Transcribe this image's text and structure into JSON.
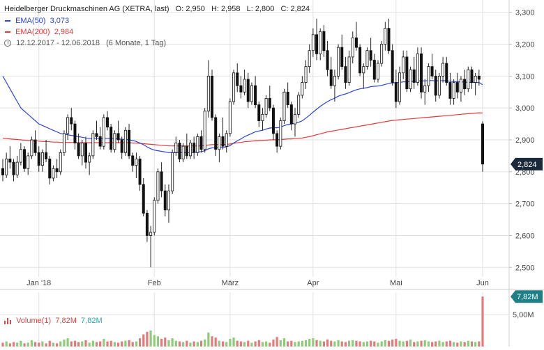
{
  "header": {
    "title": "Heidelberger Druckmaschinen AG (XETRA, last)",
    "open_label": "O:",
    "open": "2,950",
    "high_label": "H:",
    "high": "2,958",
    "low_label": "L:",
    "low": "2,800",
    "close_label": "C:",
    "close": "2,824",
    "ema50_label": "EMA(50)",
    "ema50_value": "3,073",
    "ema200_label": "EMA(200)",
    "ema200_value": "2,984",
    "date_range": "12.12.2017 - 12.06.2018",
    "period": "(6 Monate, 1 Tag)"
  },
  "volume_legend": {
    "label": "Volume(1)",
    "value1": "7,82M",
    "value2": "7,82M"
  },
  "price_badge": "2,824",
  "volume_badge": "7,82M",
  "colors": {
    "up": "#ffffff",
    "down": "#111111",
    "wick": "#222222",
    "ema50": "#2b45d8",
    "ema200": "#e23b3b",
    "vol_up": "#8ecb7a",
    "vol_down": "#e27b7b",
    "grid": "#e2e2e2",
    "badge_bg": "#1b2a3a",
    "volume_badge_bg": "#1e7f86"
  },
  "chart_data": [
    {
      "type": "candlestick",
      "title": "Heidelberger Druckmaschinen AG (XETRA, last)",
      "ylim": [
        2.47,
        3.33
      ],
      "y_ticks": [
        "3,300",
        "3,200",
        "3,100",
        "3,000",
        "2,900",
        "2,800",
        "2,700",
        "2,600",
        "2,500"
      ],
      "x_ticks": [
        "Jan '18",
        "Feb",
        "März",
        "Apr",
        "Mai",
        "Jun"
      ],
      "x_tick_index": [
        10,
        42,
        63,
        86,
        109,
        133
      ],
      "ohlc": [
        [
          2.81,
          2.84,
          2.77,
          2.79
        ],
        [
          2.79,
          2.86,
          2.78,
          2.84
        ],
        [
          2.84,
          2.88,
          2.81,
          2.83
        ],
        [
          2.83,
          2.84,
          2.77,
          2.79
        ],
        [
          2.79,
          2.85,
          2.78,
          2.83
        ],
        [
          2.83,
          2.89,
          2.82,
          2.87
        ],
        [
          2.87,
          2.88,
          2.8,
          2.81
        ],
        [
          2.81,
          2.86,
          2.79,
          2.85
        ],
        [
          2.85,
          2.91,
          2.84,
          2.9
        ],
        [
          2.9,
          2.93,
          2.85,
          2.86
        ],
        [
          2.86,
          2.88,
          2.8,
          2.82
        ],
        [
          2.82,
          2.87,
          2.8,
          2.86
        ],
        [
          2.86,
          2.9,
          2.83,
          2.84
        ],
        [
          2.84,
          2.85,
          2.76,
          2.78
        ],
        [
          2.78,
          2.82,
          2.77,
          2.81
        ],
        [
          2.81,
          2.84,
          2.78,
          2.8
        ],
        [
          2.8,
          2.87,
          2.79,
          2.86
        ],
        [
          2.86,
          2.93,
          2.85,
          2.92
        ],
        [
          2.92,
          2.98,
          2.9,
          2.97
        ],
        [
          2.97,
          3.0,
          2.93,
          2.95
        ],
        [
          2.95,
          2.96,
          2.87,
          2.89
        ],
        [
          2.89,
          2.92,
          2.84,
          2.85
        ],
        [
          2.85,
          2.9,
          2.82,
          2.89
        ],
        [
          2.89,
          2.91,
          2.81,
          2.83
        ],
        [
          2.83,
          2.86,
          2.79,
          2.85
        ],
        [
          2.85,
          2.93,
          2.84,
          2.92
        ],
        [
          2.92,
          2.96,
          2.9,
          2.91
        ],
        [
          2.91,
          2.94,
          2.87,
          2.88
        ],
        [
          2.88,
          2.98,
          2.87,
          2.97
        ],
        [
          2.97,
          2.99,
          2.93,
          2.94
        ],
        [
          2.94,
          2.95,
          2.86,
          2.87
        ],
        [
          2.87,
          2.93,
          2.86,
          2.92
        ],
        [
          2.92,
          2.96,
          2.89,
          2.9
        ],
        [
          2.9,
          2.91,
          2.84,
          2.86
        ],
        [
          2.86,
          2.94,
          2.85,
          2.93
        ],
        [
          2.93,
          2.95,
          2.84,
          2.85
        ],
        [
          2.85,
          2.86,
          2.8,
          2.82
        ],
        [
          2.82,
          2.86,
          2.78,
          2.84
        ],
        [
          2.84,
          2.85,
          2.74,
          2.76
        ],
        [
          2.76,
          2.78,
          2.66,
          2.67
        ],
        [
          2.67,
          2.68,
          2.58,
          2.6
        ],
        [
          2.6,
          2.63,
          2.5,
          2.61
        ],
        [
          2.61,
          2.72,
          2.6,
          2.71
        ],
        [
          2.71,
          2.81,
          2.7,
          2.8
        ],
        [
          2.8,
          2.83,
          2.72,
          2.74
        ],
        [
          2.74,
          2.76,
          2.66,
          2.68
        ],
        [
          2.68,
          2.76,
          2.64,
          2.74
        ],
        [
          2.74,
          2.87,
          2.73,
          2.86
        ],
        [
          2.86,
          2.91,
          2.85,
          2.89
        ],
        [
          2.89,
          2.9,
          2.83,
          2.84
        ],
        [
          2.84,
          2.89,
          2.83,
          2.88
        ],
        [
          2.88,
          2.92,
          2.84,
          2.85
        ],
        [
          2.85,
          2.9,
          2.84,
          2.89
        ],
        [
          2.89,
          2.91,
          2.84,
          2.86
        ],
        [
          2.86,
          2.92,
          2.85,
          2.91
        ],
        [
          2.91,
          2.93,
          2.86,
          2.87
        ],
        [
          2.87,
          3.0,
          2.86,
          2.99
        ],
        [
          2.99,
          3.15,
          2.97,
          3.1
        ],
        [
          3.1,
          3.12,
          2.96,
          2.97
        ],
        [
          2.97,
          2.98,
          2.85,
          2.87
        ],
        [
          2.87,
          2.92,
          2.83,
          2.91
        ],
        [
          2.91,
          2.97,
          2.87,
          2.88
        ],
        [
          2.88,
          2.93,
          2.86,
          2.92
        ],
        [
          2.92,
          3.03,
          2.91,
          3.02
        ],
        [
          3.02,
          3.12,
          3.01,
          3.11
        ],
        [
          3.11,
          3.14,
          3.05,
          3.07
        ],
        [
          3.07,
          3.1,
          3.03,
          3.05
        ],
        [
          3.05,
          3.12,
          3.04,
          3.09
        ],
        [
          3.09,
          3.11,
          3.0,
          3.02
        ],
        [
          3.02,
          3.08,
          3.01,
          3.07
        ],
        [
          3.07,
          3.1,
          3.0,
          3.01
        ],
        [
          3.01,
          3.02,
          2.94,
          2.96
        ],
        [
          2.96,
          3.0,
          2.93,
          2.98
        ],
        [
          2.98,
          3.04,
          2.97,
          3.03
        ],
        [
          3.03,
          3.07,
          2.99,
          3.0
        ],
        [
          3.0,
          3.01,
          2.9,
          2.92
        ],
        [
          2.92,
          2.93,
          2.86,
          2.88
        ],
        [
          2.88,
          2.97,
          2.87,
          2.96
        ],
        [
          2.96,
          3.06,
          2.95,
          3.05
        ],
        [
          3.05,
          3.08,
          3.0,
          3.01
        ],
        [
          3.01,
          3.02,
          2.93,
          2.95
        ],
        [
          2.95,
          3.0,
          2.91,
          2.98
        ],
        [
          2.98,
          3.05,
          2.97,
          3.04
        ],
        [
          3.04,
          3.1,
          3.03,
          3.08
        ],
        [
          3.08,
          3.15,
          3.06,
          3.13
        ],
        [
          3.13,
          3.2,
          3.11,
          3.18
        ],
        [
          3.18,
          3.25,
          3.16,
          3.23
        ],
        [
          3.23,
          3.28,
          3.15,
          3.17
        ],
        [
          3.17,
          3.25,
          3.15,
          3.24
        ],
        [
          3.24,
          3.26,
          3.16,
          3.18
        ],
        [
          3.18,
          3.21,
          3.1,
          3.12
        ],
        [
          3.12,
          3.16,
          3.06,
          3.07
        ],
        [
          3.07,
          3.12,
          3.02,
          3.1
        ],
        [
          3.1,
          3.2,
          3.09,
          3.19
        ],
        [
          3.19,
          3.23,
          3.12,
          3.13
        ],
        [
          3.13,
          3.16,
          3.06,
          3.08
        ],
        [
          3.08,
          3.18,
          3.07,
          3.16
        ],
        [
          3.16,
          3.24,
          3.14,
          3.22
        ],
        [
          3.22,
          3.27,
          3.18,
          3.19
        ],
        [
          3.19,
          3.2,
          3.1,
          3.11
        ],
        [
          3.11,
          3.14,
          3.06,
          3.13
        ],
        [
          3.13,
          3.19,
          3.12,
          3.18
        ],
        [
          3.18,
          3.22,
          3.13,
          3.15
        ],
        [
          3.15,
          3.17,
          3.08,
          3.09
        ],
        [
          3.09,
          3.15,
          3.08,
          3.14
        ],
        [
          3.14,
          3.21,
          3.13,
          3.2
        ],
        [
          3.2,
          3.27,
          3.18,
          3.25
        ],
        [
          3.25,
          3.28,
          3.17,
          3.18
        ],
        [
          3.18,
          3.2,
          3.07,
          3.08
        ],
        [
          3.08,
          3.12,
          3.0,
          3.02
        ],
        [
          3.02,
          3.13,
          3.01,
          3.11
        ],
        [
          3.11,
          3.18,
          3.09,
          3.16
        ],
        [
          3.16,
          3.18,
          3.05,
          3.06
        ],
        [
          3.06,
          3.13,
          3.05,
          3.12
        ],
        [
          3.12,
          3.16,
          3.06,
          3.08
        ],
        [
          3.08,
          3.19,
          3.07,
          3.17
        ],
        [
          3.17,
          3.19,
          3.03,
          3.05
        ],
        [
          3.05,
          3.09,
          3.01,
          3.07
        ],
        [
          3.07,
          3.14,
          3.05,
          3.13
        ],
        [
          3.13,
          3.17,
          3.09,
          3.1
        ],
        [
          3.1,
          3.12,
          3.02,
          3.04
        ],
        [
          3.04,
          3.11,
          3.03,
          3.1
        ],
        [
          3.1,
          3.16,
          3.08,
          3.14
        ],
        [
          3.14,
          3.16,
          3.07,
          3.08
        ],
        [
          3.08,
          3.11,
          3.01,
          3.03
        ],
        [
          3.03,
          3.09,
          3.01,
          3.08
        ],
        [
          3.08,
          3.11,
          3.03,
          3.05
        ],
        [
          3.05,
          3.1,
          3.02,
          3.09
        ],
        [
          3.09,
          3.12,
          3.04,
          3.06
        ],
        [
          3.06,
          3.13,
          3.05,
          3.12
        ],
        [
          3.12,
          3.13,
          3.06,
          3.08
        ],
        [
          3.08,
          3.11,
          3.04,
          3.1
        ],
        [
          3.1,
          3.12,
          3.07,
          3.09
        ],
        [
          2.95,
          2.958,
          2.8,
          2.824
        ]
      ],
      "ema50": [
        3.1,
        3.08,
        3.06,
        3.04,
        3.02,
        3.0,
        2.99,
        2.98,
        2.97,
        2.96,
        2.95,
        2.945,
        2.94,
        2.935,
        2.93,
        2.925,
        2.92,
        2.918,
        2.916,
        2.914,
        2.912,
        2.91,
        2.908,
        2.906,
        2.905,
        2.905,
        2.905,
        2.905,
        2.905,
        2.905,
        2.905,
        2.904,
        2.903,
        2.902,
        2.901,
        2.9,
        2.898,
        2.895,
        2.89,
        2.885,
        2.878,
        2.872,
        2.868,
        2.866,
        2.864,
        2.862,
        2.86,
        2.86,
        2.86,
        2.86,
        2.86,
        2.86,
        2.86,
        2.861,
        2.862,
        2.863,
        2.866,
        2.872,
        2.875,
        2.875,
        2.875,
        2.876,
        2.878,
        2.882,
        2.89,
        2.897,
        2.903,
        2.91,
        2.915,
        2.92,
        2.925,
        2.928,
        2.93,
        2.934,
        2.937,
        2.938,
        2.938,
        2.94,
        2.945,
        2.948,
        2.95,
        2.952,
        2.955,
        2.96,
        2.968,
        2.977,
        2.987,
        2.996,
        3.005,
        3.013,
        3.02,
        3.026,
        3.031,
        3.037,
        3.041,
        3.044,
        3.048,
        3.053,
        3.057,
        3.06,
        3.062,
        3.064,
        3.067,
        3.068,
        3.069,
        3.071,
        3.074,
        3.077,
        3.079,
        3.079,
        3.08,
        3.082,
        3.082,
        3.083,
        3.083,
        3.085,
        3.085,
        3.085,
        3.086,
        3.086,
        3.085,
        3.085,
        3.086,
        3.085,
        3.084,
        3.083,
        3.082,
        3.082,
        3.081,
        3.081,
        3.08,
        3.08,
        3.08,
        3.073
      ],
      "ema200": [
        2.905,
        2.904,
        2.903,
        2.902,
        2.901,
        2.9,
        2.899,
        2.898,
        2.897,
        2.897,
        2.896,
        2.895,
        2.895,
        2.894,
        2.893,
        2.893,
        2.892,
        2.892,
        2.892,
        2.892,
        2.892,
        2.891,
        2.891,
        2.891,
        2.891,
        2.891,
        2.891,
        2.891,
        2.891,
        2.891,
        2.891,
        2.891,
        2.891,
        2.891,
        2.891,
        2.891,
        2.89,
        2.89,
        2.889,
        2.888,
        2.887,
        2.886,
        2.885,
        2.884,
        2.883,
        2.882,
        2.881,
        2.881,
        2.881,
        2.881,
        2.881,
        2.881,
        2.881,
        2.881,
        2.881,
        2.881,
        2.882,
        2.884,
        2.885,
        2.885,
        2.885,
        2.885,
        2.886,
        2.887,
        2.889,
        2.891,
        2.892,
        2.894,
        2.895,
        2.896,
        2.897,
        2.898,
        2.898,
        2.899,
        2.9,
        2.9,
        2.9,
        2.901,
        2.902,
        2.903,
        2.903,
        2.904,
        2.905,
        2.906,
        2.908,
        2.91,
        2.913,
        2.916,
        2.919,
        2.922,
        2.925,
        2.927,
        2.929,
        2.931,
        2.933,
        2.935,
        2.937,
        2.939,
        2.941,
        2.943,
        2.945,
        2.947,
        2.949,
        2.951,
        2.953,
        2.955,
        2.957,
        2.959,
        2.961,
        2.962,
        2.963,
        2.964,
        2.965,
        2.966,
        2.967,
        2.968,
        2.969,
        2.97,
        2.971,
        2.972,
        2.973,
        2.974,
        2.975,
        2.976,
        2.977,
        2.978,
        2.979,
        2.98,
        2.981,
        2.982,
        2.983,
        2.984,
        2.985,
        2.984
      ]
    },
    {
      "type": "bar",
      "title": "Volume(1)",
      "y_ticks": [
        "5,00M"
      ],
      "ylim": [
        0,
        8.5
      ],
      "values": [
        0.6,
        0.8,
        0.5,
        0.7,
        0.6,
        0.9,
        0.5,
        0.6,
        1.0,
        0.7,
        0.6,
        0.8,
        0.5,
        0.9,
        0.6,
        0.5,
        0.8,
        1.1,
        1.3,
        0.8,
        0.9,
        0.7,
        0.8,
        1.0,
        0.6,
        0.9,
        0.7,
        0.8,
        1.2,
        0.8,
        0.9,
        0.7,
        0.6,
        0.8,
        0.9,
        1.0,
        0.7,
        0.8,
        1.3,
        1.9,
        2.3,
        2.5,
        1.8,
        1.6,
        1.2,
        1.4,
        1.0,
        1.3,
        0.9,
        0.8,
        0.7,
        0.9,
        0.6,
        0.8,
        0.7,
        0.9,
        1.1,
        2.2,
        1.6,
        1.4,
        0.9,
        0.8,
        0.7,
        1.2,
        1.4,
        0.9,
        0.8,
        0.7,
        0.9,
        0.6,
        0.8,
        1.0,
        0.7,
        0.8,
        0.6,
        1.1,
        1.5,
        1.0,
        1.3,
        0.8,
        0.9,
        0.7,
        0.8,
        0.9,
        1.0,
        1.2,
        1.3,
        1.0,
        0.9,
        0.8,
        1.1,
        0.9,
        0.8,
        1.0,
        0.8,
        0.7,
        0.9,
        1.0,
        0.9,
        0.8,
        0.7,
        0.8,
        0.9,
        0.8,
        0.6,
        0.8,
        1.0,
        0.9,
        1.1,
        1.2,
        0.9,
        0.8,
        0.9,
        1.1,
        0.7,
        0.8,
        0.9,
        1.0,
        0.8,
        0.7,
        0.8,
        0.9,
        0.7,
        0.8,
        0.9,
        0.7,
        0.6,
        0.8,
        0.7,
        0.9,
        0.8,
        0.7,
        0.8,
        7.82
      ]
    }
  ]
}
